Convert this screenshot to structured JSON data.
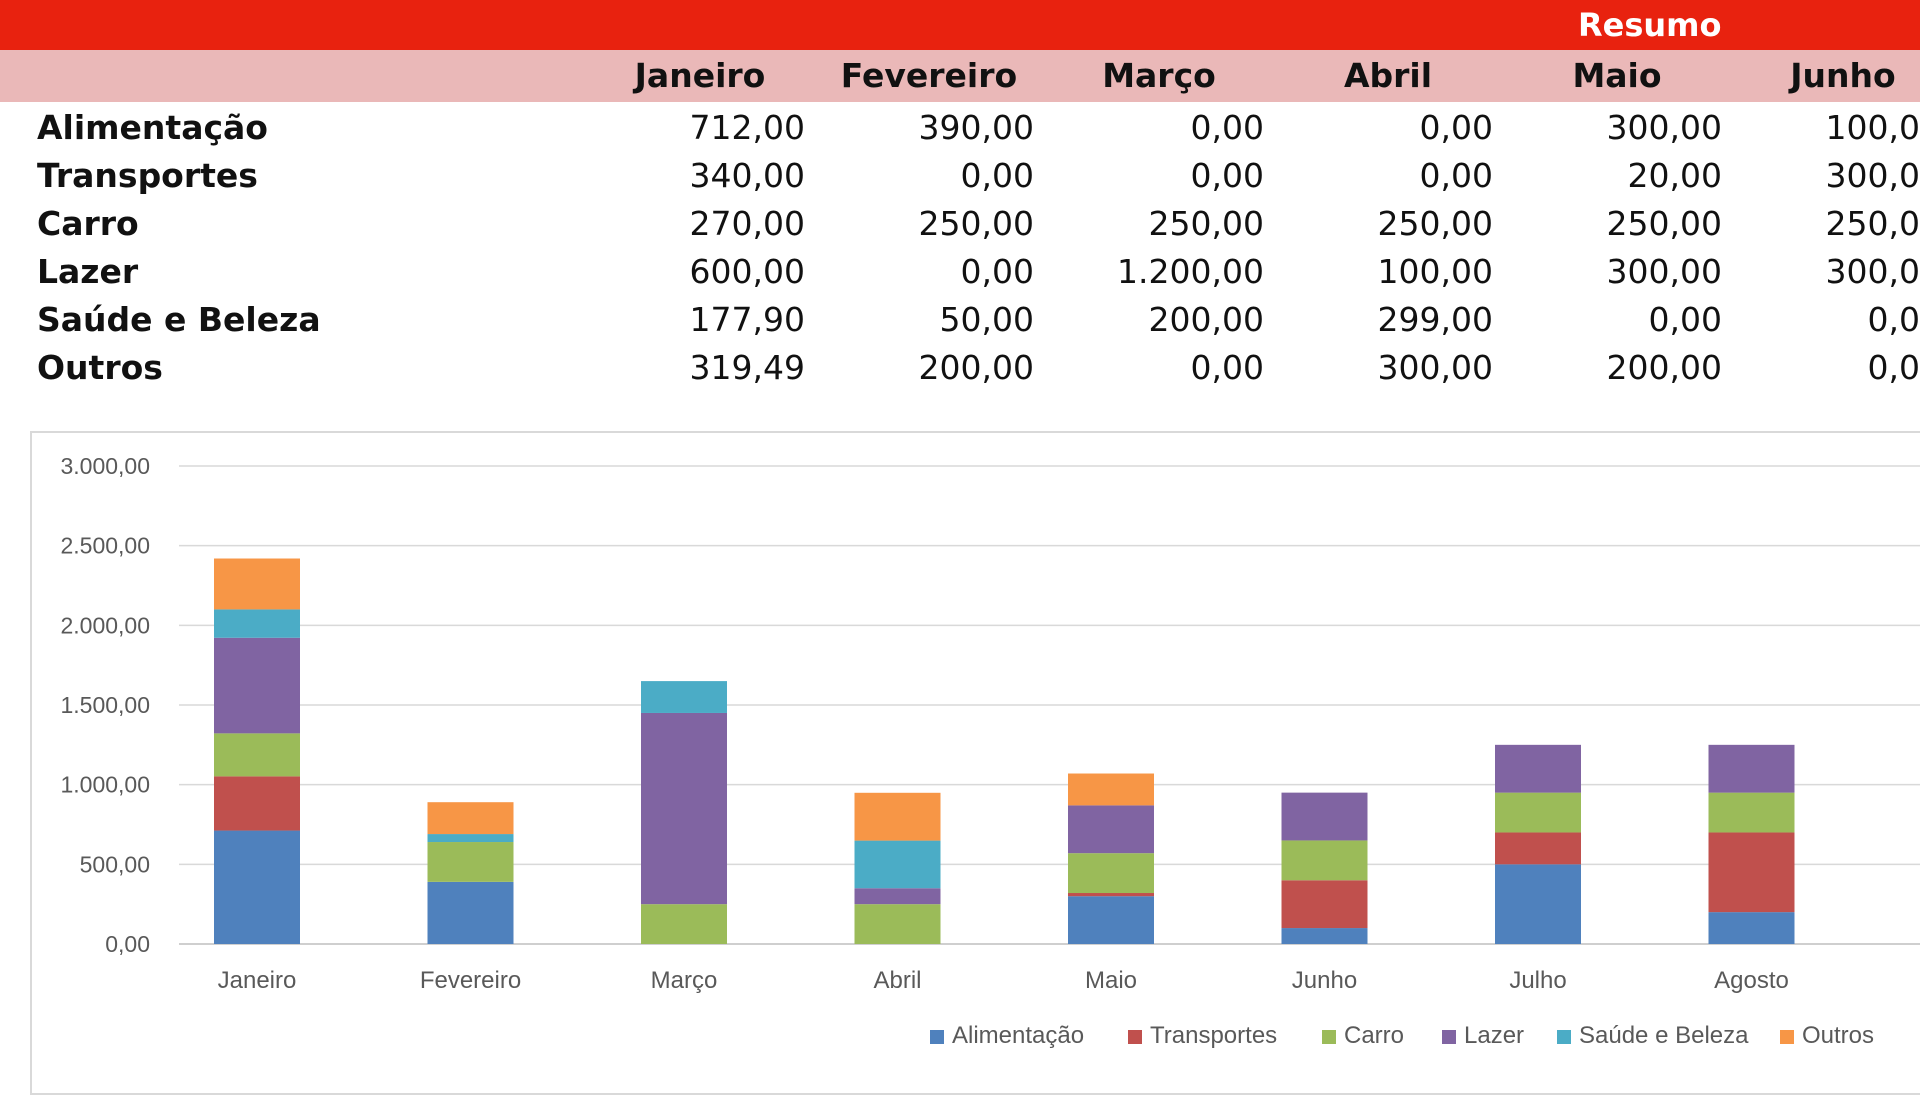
{
  "header": {
    "title": "Resumo"
  },
  "table": {
    "months": [
      "Janeiro",
      "Fevereiro",
      "Março",
      "Abril",
      "Maio",
      "Junho"
    ],
    "rows": [
      {
        "label": "Alimentação",
        "values": [
          "712,00",
          "390,00",
          "0,00",
          "0,00",
          "300,00",
          "100,0"
        ]
      },
      {
        "label": "Transportes",
        "values": [
          "340,00",
          "0,00",
          "0,00",
          "0,00",
          "20,00",
          "300,0"
        ]
      },
      {
        "label": "Carro",
        "values": [
          "270,00",
          "250,00",
          "250,00",
          "250,00",
          "250,00",
          "250,0"
        ]
      },
      {
        "label": "Lazer",
        "values": [
          "600,00",
          "0,00",
          "1.200,00",
          "100,00",
          "300,00",
          "300,0"
        ]
      },
      {
        "label": "Saúde e Beleza",
        "values": [
          "177,90",
          "50,00",
          "200,00",
          "299,00",
          "0,00",
          "0,0"
        ]
      },
      {
        "label": "Outros",
        "values": [
          "319,49",
          "200,00",
          "0,00",
          "300,00",
          "200,00",
          "0,0"
        ]
      }
    ]
  },
  "chart_data": {
    "type": "bar",
    "stacked": true,
    "categories": [
      "Janeiro",
      "Fevereiro",
      "Março",
      "Abril",
      "Maio",
      "Junho",
      "Julho",
      "Agosto"
    ],
    "series": [
      {
        "name": "Alimentação",
        "color": "#4f81bd",
        "values": [
          712,
          390,
          0,
          0,
          300,
          100,
          500,
          200
        ]
      },
      {
        "name": "Transportes",
        "color": "#c0504d",
        "values": [
          340,
          0,
          0,
          0,
          20,
          300,
          200,
          500
        ]
      },
      {
        "name": "Carro",
        "color": "#9bbb59",
        "values": [
          270,
          250,
          250,
          250,
          250,
          250,
          250,
          250
        ]
      },
      {
        "name": "Lazer",
        "color": "#8064a2",
        "values": [
          600,
          0,
          1200,
          100,
          300,
          300,
          300,
          300
        ]
      },
      {
        "name": "Saúde e Beleza",
        "color": "#4bacc6",
        "values": [
          177.9,
          50,
          200,
          299,
          0,
          0,
          0,
          0
        ]
      },
      {
        "name": "Outros",
        "color": "#f79646",
        "values": [
          319.49,
          200,
          0,
          300,
          200,
          0,
          0,
          0
        ]
      }
    ],
    "ylim": [
      0,
      3000
    ],
    "yticks": [
      0,
      500,
      1000,
      1500,
      2000,
      2500,
      3000
    ],
    "ytick_labels": [
      "0,00",
      "500,00",
      "1.000,00",
      "1.500,00",
      "2.000,00",
      "2.500,00",
      "3.000,00"
    ],
    "grid": true,
    "legend_position": "bottom-right",
    "title": "",
    "xlabel": "",
    "ylabel": ""
  }
}
